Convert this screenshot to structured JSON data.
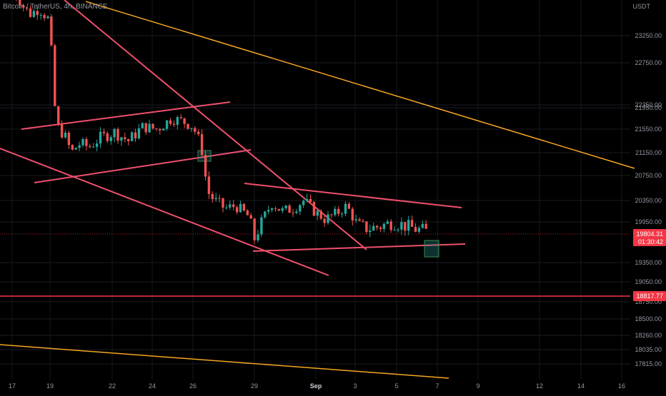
{
  "header": {
    "symbol": "Bitcoin / TetherUS, 4h, BINANCE",
    "unit": "USDT"
  },
  "price_badges": {
    "current_price": "19804.31",
    "countdown": "01:30:42",
    "level_price": "18817.77"
  },
  "colors": {
    "background": "#000000",
    "bull": "#26a69a",
    "bear": "#ef5350",
    "trendline": "#f0506e",
    "long_trendline": "#f5a623"
  },
  "chart_data": {
    "type": "candlestick",
    "title": "Bitcoin / TetherUS, 4h, BINANCE",
    "y_unit": "USDT",
    "x_tick_labels": [
      "17",
      "19",
      "22",
      "24",
      "26",
      "29",
      "Sep",
      "3",
      "5",
      "7",
      "9",
      "12",
      "14",
      "16"
    ],
    "y_tick_labels": [
      "23250.00",
      "22750.00",
      "22350.00",
      "21950.00",
      "21550.00",
      "21150.00",
      "20750.00",
      "20350.00",
      "19950.00",
      "19350.00",
      "19050.00",
      "18750.00",
      "18500.00",
      "18260.00",
      "18035.00",
      "17815.00"
    ],
    "current_price": 19804.31,
    "horizontal_level": 18817.77,
    "key_closes": [
      {
        "period": "Aug 17",
        "close": 23900
      },
      {
        "period": "Aug 19",
        "close": 21500
      },
      {
        "period": "Aug 22",
        "close": 21300
      },
      {
        "period": "Aug 25",
        "close": 21700
      },
      {
        "period": "Aug 27",
        "close": 20100
      },
      {
        "period": "Aug 29",
        "close": 20250
      },
      {
        "period": "Aug 31",
        "close": 20050
      },
      {
        "period": "Sep 2",
        "close": 19900
      },
      {
        "period": "Sep 6",
        "close": 19804.31
      }
    ]
  }
}
